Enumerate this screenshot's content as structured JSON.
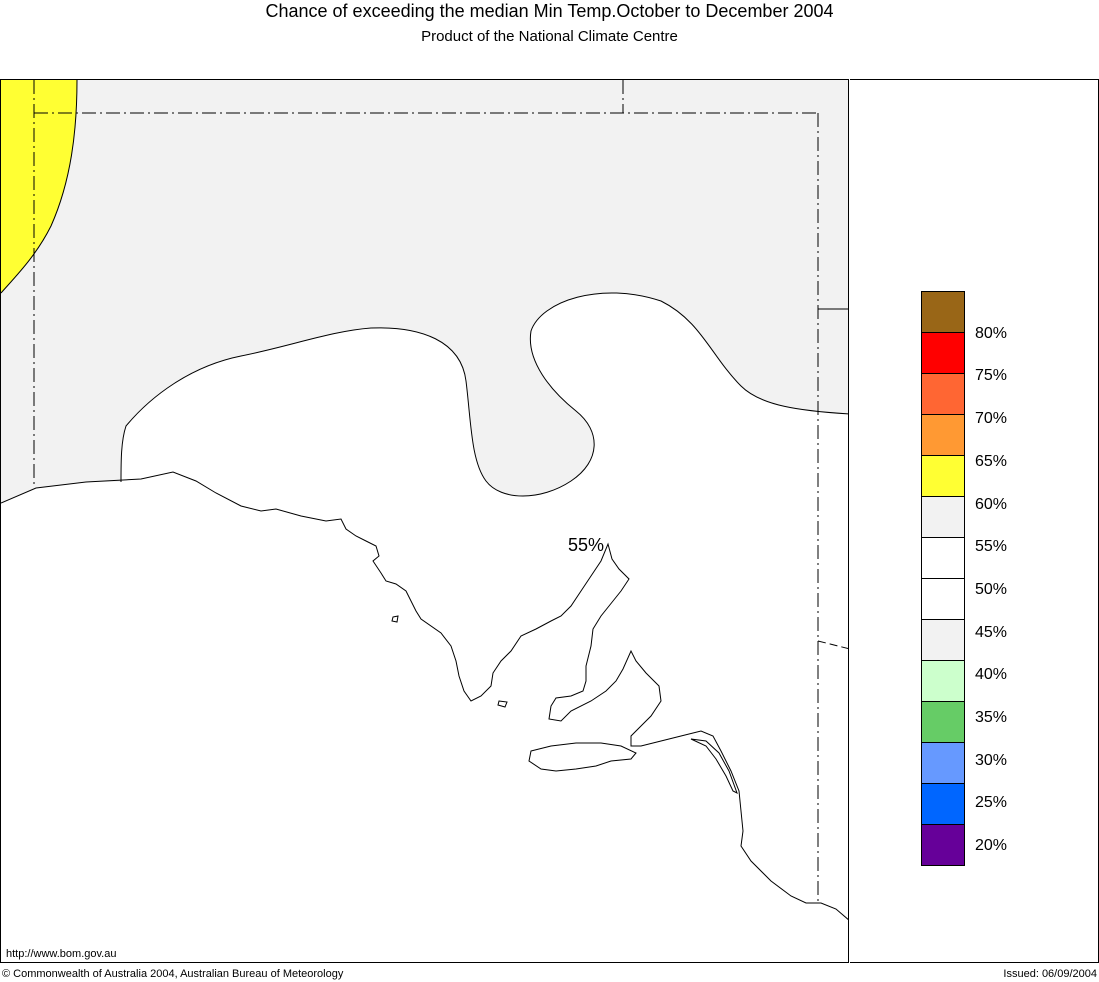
{
  "header": {
    "title": "Chance of exceeding the median Min Temp.October to December 2004",
    "subtitle": "Product of the National Climate Centre"
  },
  "map": {
    "contour_label": "55%",
    "colors": {
      "land_high": "#f2f2f2",
      "land_60": "#ffff33",
      "base": "#ffffff"
    }
  },
  "legend": {
    "swatches": [
      {
        "color": "#996617",
        "range": "80-85"
      },
      {
        "color": "#ff0000",
        "range": "75-80"
      },
      {
        "color": "#ff6633",
        "range": "70-75"
      },
      {
        "color": "#ff9933",
        "range": "65-70"
      },
      {
        "color": "#ffff33",
        "range": "60-65"
      },
      {
        "color": "#f2f2f2",
        "range": "55-60"
      },
      {
        "color": "#ffffff",
        "range": "50-55"
      },
      {
        "color": "#ffffff",
        "range": "45-50"
      },
      {
        "color": "#f2f2f2",
        "range": "40-45"
      },
      {
        "color": "#ccffcc",
        "range": "35-40"
      },
      {
        "color": "#66cc66",
        "range": "30-35"
      },
      {
        "color": "#6699ff",
        "range": "25-30"
      },
      {
        "color": "#0066ff",
        "range": "20-25"
      },
      {
        "color": "#660099",
        "range": "15-20"
      }
    ],
    "labels": [
      "80%",
      "75%",
      "70%",
      "65%",
      "60%",
      "55%",
      "50%",
      "45%",
      "40%",
      "35%",
      "30%",
      "25%",
      "20%"
    ]
  },
  "footer": {
    "url": "http://www.bom.gov.au",
    "copyright": "© Commonwealth of Australia 2004, Australian Bureau of Meteorology",
    "issued": "Issued: 06/09/2004"
  }
}
